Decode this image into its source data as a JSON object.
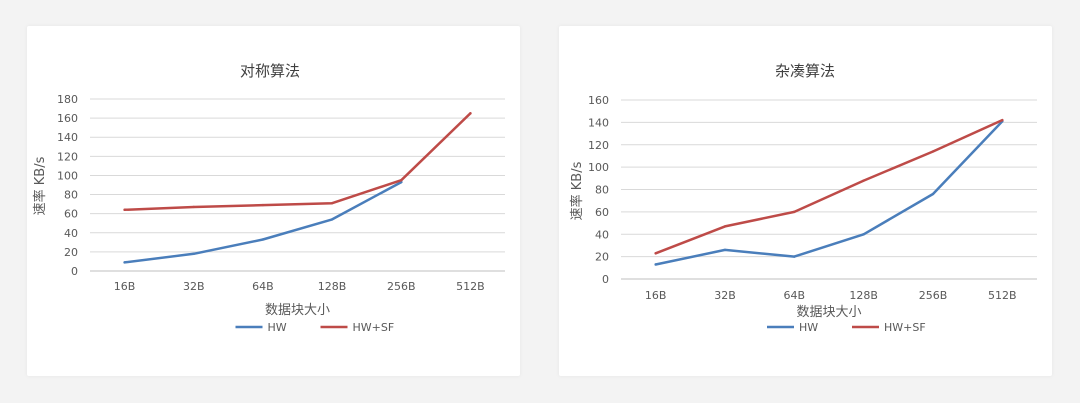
{
  "colors": {
    "hw": "#4a7ebb",
    "hw_sf": "#be4b48",
    "page_background": "#f3f3f3",
    "panel_background": "#ffffff"
  },
  "chart_data": [
    {
      "type": "line",
      "title": "对称算法",
      "xlabel": "数据块大小",
      "ylabel": "速率 KB/s",
      "categories": [
        "16B",
        "32B",
        "64B",
        "128B",
        "256B",
        "512B"
      ],
      "ylim": [
        0,
        180
      ],
      "yticks": [
        0,
        20,
        40,
        60,
        80,
        100,
        120,
        140,
        160,
        180
      ],
      "grid": true,
      "legend_position": "bottom",
      "series": [
        {
          "name": "HW",
          "color": "#4a7ebb",
          "values": [
            9,
            18,
            33,
            54,
            93,
            null
          ]
        },
        {
          "name": "HW+SF",
          "color": "#be4b48",
          "values": [
            64,
            67,
            69,
            71,
            95,
            165
          ]
        }
      ]
    },
    {
      "type": "line",
      "title": "杂凑算法",
      "xlabel": "数据块大小",
      "ylabel": "速率 KB/s",
      "categories": [
        "16B",
        "32B",
        "64B",
        "128B",
        "256B",
        "512B"
      ],
      "ylim": [
        0,
        160
      ],
      "yticks": [
        0,
        20,
        40,
        60,
        80,
        100,
        120,
        140,
        160
      ],
      "grid": true,
      "legend_position": "bottom",
      "series": [
        {
          "name": "HW",
          "color": "#4a7ebb",
          "values": [
            13,
            26,
            20,
            40,
            76,
            141
          ]
        },
        {
          "name": "HW+SF",
          "color": "#be4b48",
          "values": [
            23,
            47,
            60,
            88,
            114,
            142
          ]
        }
      ]
    }
  ]
}
